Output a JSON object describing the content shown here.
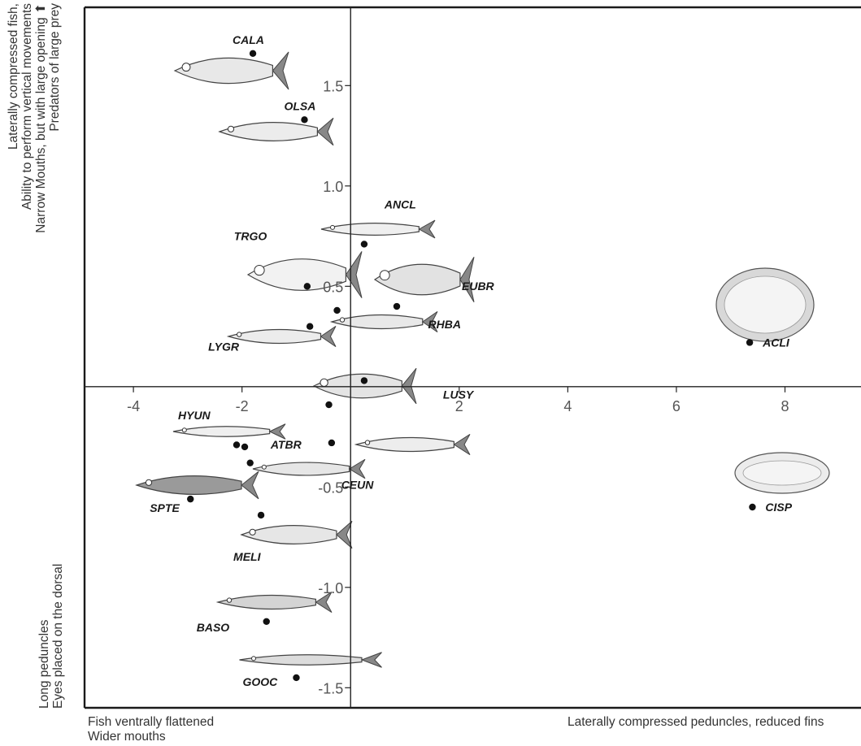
{
  "chart_data": {
    "type": "scatter",
    "xlim": [
      -4.9,
      9.4
    ],
    "ylim": [
      -1.6,
      1.89
    ],
    "xticks": [
      -4,
      -2,
      2,
      4,
      6,
      8
    ],
    "xtick_labels": [
      "-4",
      "-2",
      "2",
      "4",
      "6",
      "8"
    ],
    "yticks": [
      1.5,
      1.0,
      0.5,
      -0.5,
      -1.0,
      -1.5
    ],
    "ytick_labels": [
      "1.5",
      "1.0",
      "0.5",
      "-0.5",
      "-1.0",
      "-1.5"
    ],
    "y_axis_top_label": [
      "Laterally compressed fish,",
      "Ability to perform vertical movements",
      "Narrow Mouths, but with large opening",
      "Predators of large prey"
    ],
    "y_axis_top_arrow": "⬆",
    "y_axis_bottom_label": [
      "Long peduncles",
      "Eyes placed on the dorsal"
    ],
    "x_axis_left_label": [
      "Fish ventrally flattened",
      "Wider mouths"
    ],
    "x_axis_right_label": "Laterally compressed peduncles, reduced fins",
    "points": [
      {
        "label": "CALA",
        "x": -1.8,
        "y": 1.66
      },
      {
        "label": "OLSA",
        "x": -0.85,
        "y": 1.33
      },
      {
        "label": "ANCL",
        "x": 0.25,
        "y": 0.71
      },
      {
        "label": "TRGO",
        "x": -0.8,
        "y": 0.5
      },
      {
        "label": "EUBR",
        "x": 0.85,
        "y": 0.4
      },
      {
        "label": "RHBA",
        "x": -0.25,
        "y": 0.38
      },
      {
        "label": "LYGR",
        "x": -0.75,
        "y": 0.3
      },
      {
        "label": "ACLI",
        "x": 7.35,
        "y": 0.22
      },
      {
        "label": "LUSY",
        "x": 0.25,
        "y": 0.03
      },
      {
        "label": "HYUN",
        "x": -1.95,
        "y": -0.3
      },
      {
        "label": "ATBR",
        "x": -0.35,
        "y": -0.28
      },
      {
        "label": "CEUN",
        "x": -1.85,
        "y": -0.38
      },
      {
        "label": "SPTE",
        "x": -2.95,
        "y": -0.56
      },
      {
        "label": "CISP",
        "x": 7.4,
        "y": -0.6
      },
      {
        "label": "MELI",
        "x": -1.65,
        "y": -0.64
      },
      {
        "label": "BASO",
        "x": -1.55,
        "y": -1.17
      },
      {
        "label": "GOOC",
        "x": -1.0,
        "y": -1.45
      },
      {
        "label": "",
        "x": -0.4,
        "y": -0.09
      },
      {
        "label": "",
        "x": -2.1,
        "y": -0.29
      }
    ]
  }
}
